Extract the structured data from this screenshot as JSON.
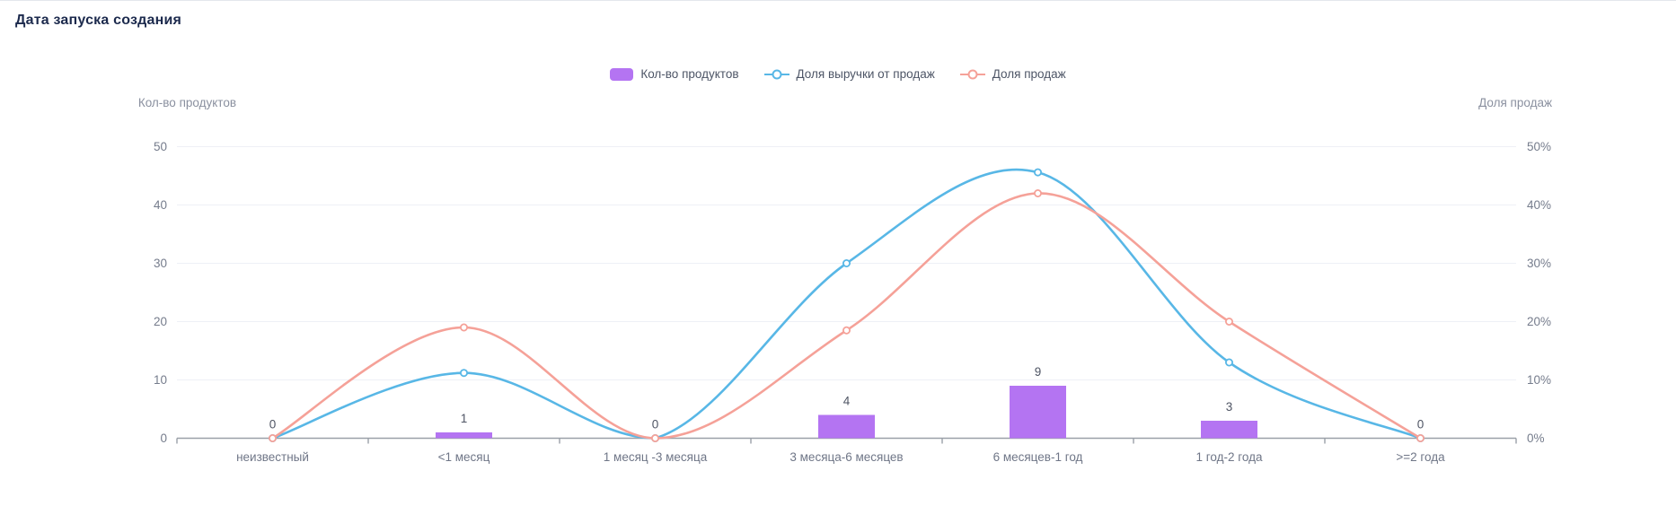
{
  "header": {
    "title": "Дата запуска создания"
  },
  "chart_data": {
    "type": "bar+line",
    "title": "Дата запуска создания",
    "categories": [
      "неизвестный",
      "<1 месяц",
      "1 месяц -3 месяца",
      "3 месяца-6 месяцев",
      "6 месяцев-1 год",
      "1 год-2 года",
      ">=2 года"
    ],
    "bar_series": {
      "name": "Кол-во продуктов",
      "values": [
        0,
        1,
        0,
        4,
        9,
        3,
        0
      ],
      "labels": [
        "0",
        "1",
        "0",
        "4",
        "9",
        "3",
        "0"
      ],
      "color": "#b474f2",
      "axis": "left"
    },
    "line_series": [
      {
        "name": "Доля выручки от продаж",
        "values": [
          0,
          11.2,
          0,
          30,
          45.6,
          13,
          0
        ],
        "color": "#58b7e6",
        "axis": "right",
        "smooth": true,
        "marker": "empty-circle"
      },
      {
        "name": "Доля продаж",
        "values": [
          0,
          19,
          0,
          18.5,
          42,
          20,
          0
        ],
        "color": "#f5a198",
        "axis": "right",
        "smooth": true,
        "marker": "empty-circle"
      }
    ],
    "left_axis": {
      "name": "Кол-во продуктов",
      "ticks": [
        "0",
        "10",
        "20",
        "30",
        "40",
        "50"
      ],
      "min": 0,
      "max": 50,
      "step": 10
    },
    "right_axis": {
      "name": "Доля продаж",
      "ticks": [
        "0%",
        "10%",
        "20%",
        "30%",
        "40%",
        "50%"
      ],
      "min": 0,
      "max": 50,
      "step": 10
    },
    "grid": "horizontal-light",
    "legend_position": "top-center",
    "colors": {
      "grid_line": "#eef0f6",
      "axis_line": "#9aa0a8",
      "title_text": "#1c2a4d",
      "tick_text": "#757c8c"
    }
  }
}
